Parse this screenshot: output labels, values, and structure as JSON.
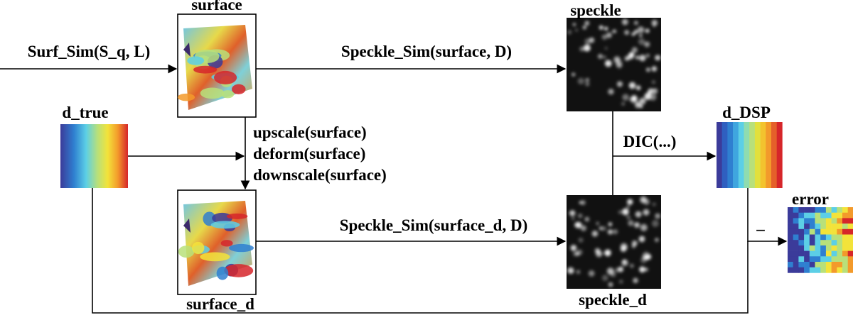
{
  "nodes": {
    "surface": {
      "label": "surface"
    },
    "speckle": {
      "label": "speckle"
    },
    "d_true": {
      "label": "d_true"
    },
    "surface_d": {
      "label": "surface_d"
    },
    "speckle_d": {
      "label": "speckle_d"
    },
    "d_dsp": {
      "label": "d_DSP"
    },
    "error": {
      "label": "error"
    }
  },
  "edges": {
    "surf_sim": {
      "label": "Surf_Sim(S_q, L)"
    },
    "speckle_sim": {
      "label": "Speckle_Sim(surface, D)"
    },
    "transform": {
      "lines": [
        "upscale(surface)",
        "deform(surface)",
        "downscale(surface)"
      ]
    },
    "speckle_sim_d": {
      "label": "Speckle_Sim(surface_d, D)"
    },
    "dic": {
      "label": "DIC(...)"
    },
    "minus": {
      "label": "–"
    }
  }
}
